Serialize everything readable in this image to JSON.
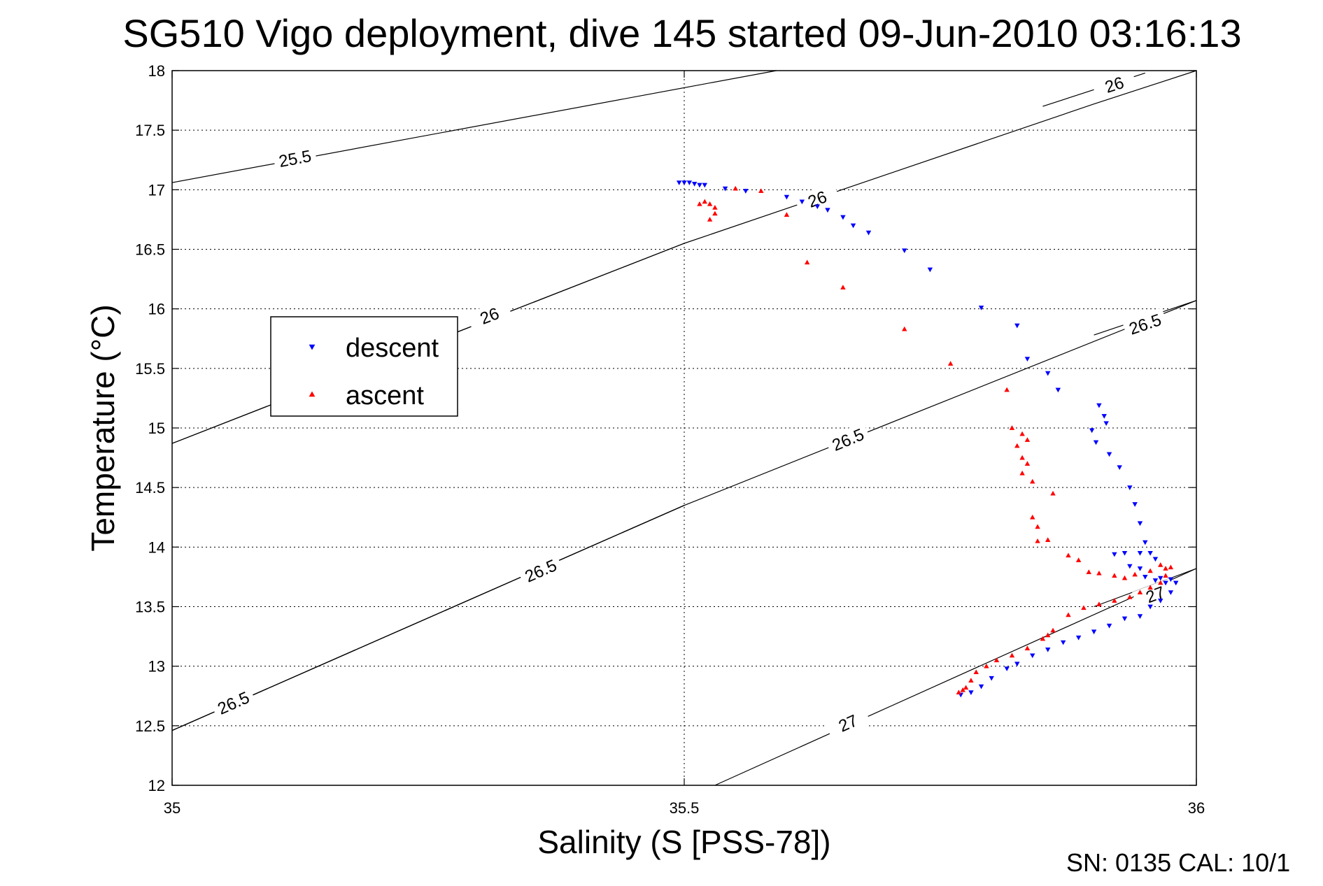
{
  "chart_data": {
    "type": "scatter",
    "title": "SG510 Vigo deployment, dive 145 started 09-Jun-2010 03:16:13",
    "xlabel": "Salinity (S [PSS-78])",
    "ylabel": "Temperature (°C)",
    "xlim": [
      35,
      36
    ],
    "ylim": [
      12,
      18
    ],
    "xticks": [
      "35",
      "35.5",
      "36"
    ],
    "yticks": [
      "12",
      "12.5",
      "13",
      "13.5",
      "14",
      "14.5",
      "15",
      "15.5",
      "16",
      "16.5",
      "17",
      "17.5",
      "18"
    ],
    "grid": true,
    "legend_position": "middle-left",
    "footer": "SN: 0135  CAL: 10/1",
    "colors": {
      "descent": "#0000ff",
      "ascent": "#ff0000",
      "contour": "#000000"
    },
    "contours": [
      {
        "label": "25.5",
        "points": [
          [
            35.0,
            17.06
          ],
          [
            35.59,
            18.0
          ]
        ],
        "label_at": [
          35.12,
          17.26
        ]
      },
      {
        "label": "26",
        "points": [
          [
            35.0,
            14.87
          ],
          [
            35.5,
            16.55
          ],
          [
            35.9,
            17.72
          ],
          [
            36.0,
            18.0
          ]
        ],
        "label_at": [
          35.63,
          16.92
        ]
      },
      {
        "label": "26",
        "points": [
          [
            35.0,
            14.87
          ],
          [
            35.5,
            16.55
          ]
        ],
        "label_at": [
          35.31,
          15.94
        ]
      },
      {
        "label": "26",
        "points": [
          [
            35.85,
            17.7
          ],
          [
            35.95,
            17.98
          ]
        ],
        "label_at": [
          35.92,
          17.88
        ]
      },
      {
        "label": "26.5",
        "points": [
          [
            35.0,
            12.46
          ],
          [
            35.5,
            14.35
          ],
          [
            36.0,
            16.07
          ]
        ],
        "label_at": [
          35.66,
          14.9
        ]
      },
      {
        "label": "26.5",
        "points": [
          [
            35.0,
            12.46
          ],
          [
            35.5,
            14.35
          ]
        ],
        "label_at": [
          35.36,
          13.8
        ]
      },
      {
        "label": "26.5",
        "points": [
          [
            35.0,
            12.46
          ],
          [
            35.5,
            14.35
          ]
        ],
        "label_at": [
          35.06,
          12.69
        ]
      },
      {
        "label": "26.5",
        "points": [
          [
            35.9,
            15.78
          ],
          [
            36.0,
            16.07
          ]
        ],
        "label_at": [
          35.95,
          15.87
        ]
      },
      {
        "label": "27",
        "points": [
          [
            35.53,
            12.0
          ],
          [
            36.0,
            13.82
          ]
        ],
        "label_at": [
          35.66,
          12.52
        ]
      },
      {
        "label": "27",
        "points": [
          [
            35.9,
            13.5
          ],
          [
            36.0,
            13.82
          ]
        ],
        "label_at": [
          35.96,
          13.6
        ]
      }
    ],
    "series": [
      {
        "name": "descent",
        "marker": "triangle-down",
        "points": [
          [
            35.495,
            17.06
          ],
          [
            35.5,
            17.06
          ],
          [
            35.505,
            17.06
          ],
          [
            35.51,
            17.05
          ],
          [
            35.515,
            17.04
          ],
          [
            35.52,
            17.04
          ],
          [
            35.54,
            17.01
          ],
          [
            35.56,
            16.99
          ],
          [
            35.6,
            16.94
          ],
          [
            35.615,
            16.9
          ],
          [
            35.63,
            16.86
          ],
          [
            35.64,
            16.83
          ],
          [
            35.655,
            16.77
          ],
          [
            35.665,
            16.7
          ],
          [
            35.68,
            16.64
          ],
          [
            35.715,
            16.49
          ],
          [
            35.74,
            16.33
          ],
          [
            35.79,
            16.01
          ],
          [
            35.825,
            15.86
          ],
          [
            35.835,
            15.58
          ],
          [
            35.855,
            15.46
          ],
          [
            35.865,
            15.32
          ],
          [
            35.905,
            15.19
          ],
          [
            35.91,
            15.1
          ],
          [
            35.912,
            15.04
          ],
          [
            35.898,
            14.98
          ],
          [
            35.902,
            14.88
          ],
          [
            35.915,
            14.78
          ],
          [
            35.925,
            14.67
          ],
          [
            35.935,
            14.5
          ],
          [
            35.94,
            14.36
          ],
          [
            35.945,
            14.2
          ],
          [
            35.95,
            14.04
          ],
          [
            35.92,
            13.94
          ],
          [
            35.93,
            13.95
          ],
          [
            35.945,
            13.95
          ],
          [
            35.955,
            13.95
          ],
          [
            35.96,
            13.9
          ],
          [
            35.935,
            13.84
          ],
          [
            35.945,
            13.82
          ],
          [
            35.95,
            13.75
          ],
          [
            35.96,
            13.72
          ],
          [
            35.965,
            13.74
          ],
          [
            35.975,
            13.73
          ],
          [
            35.97,
            13.7
          ],
          [
            35.98,
            13.7
          ],
          [
            35.975,
            13.62
          ],
          [
            35.965,
            13.55
          ],
          [
            35.955,
            13.5
          ],
          [
            35.945,
            13.42
          ],
          [
            35.93,
            13.4
          ],
          [
            35.915,
            13.34
          ],
          [
            35.9,
            13.29
          ],
          [
            35.885,
            13.24
          ],
          [
            35.87,
            13.2
          ],
          [
            35.855,
            13.14
          ],
          [
            35.84,
            13.09
          ],
          [
            35.825,
            13.02
          ],
          [
            35.815,
            12.98
          ],
          [
            35.8,
            12.9
          ],
          [
            35.79,
            12.83
          ],
          [
            35.78,
            12.78
          ],
          [
            35.77,
            12.76
          ]
        ]
      },
      {
        "name": "ascent",
        "marker": "triangle-up",
        "points": [
          [
            35.515,
            16.88
          ],
          [
            35.52,
            16.9
          ],
          [
            35.525,
            16.88
          ],
          [
            35.53,
            16.85
          ],
          [
            35.53,
            16.8
          ],
          [
            35.525,
            16.75
          ],
          [
            35.55,
            17.01
          ],
          [
            35.575,
            16.99
          ],
          [
            35.6,
            16.79
          ],
          [
            35.62,
            16.39
          ],
          [
            35.655,
            16.18
          ],
          [
            35.715,
            15.83
          ],
          [
            35.76,
            15.54
          ],
          [
            35.815,
            15.32
          ],
          [
            35.82,
            15.0
          ],
          [
            35.83,
            14.95
          ],
          [
            35.835,
            14.9
          ],
          [
            35.825,
            14.85
          ],
          [
            35.83,
            14.75
          ],
          [
            35.835,
            14.7
          ],
          [
            35.83,
            14.62
          ],
          [
            35.84,
            14.55
          ],
          [
            35.86,
            14.45
          ],
          [
            35.84,
            14.25
          ],
          [
            35.845,
            14.17
          ],
          [
            35.845,
            14.05
          ],
          [
            35.855,
            14.06
          ],
          [
            35.875,
            13.93
          ],
          [
            35.885,
            13.89
          ],
          [
            35.895,
            13.79
          ],
          [
            35.905,
            13.78
          ],
          [
            35.92,
            13.76
          ],
          [
            35.93,
            13.74
          ],
          [
            35.94,
            13.77
          ],
          [
            35.955,
            13.8
          ],
          [
            35.965,
            13.85
          ],
          [
            35.97,
            13.82
          ],
          [
            35.975,
            13.83
          ],
          [
            35.97,
            13.76
          ],
          [
            35.965,
            13.7
          ],
          [
            35.955,
            13.66
          ],
          [
            35.945,
            13.62
          ],
          [
            35.935,
            13.58
          ],
          [
            35.92,
            13.55
          ],
          [
            35.905,
            13.52
          ],
          [
            35.89,
            13.49
          ],
          [
            35.875,
            13.43
          ],
          [
            35.86,
            13.3
          ],
          [
            35.855,
            13.26
          ],
          [
            35.85,
            13.23
          ],
          [
            35.835,
            13.15
          ],
          [
            35.82,
            13.09
          ],
          [
            35.805,
            13.05
          ],
          [
            35.795,
            13.0
          ],
          [
            35.785,
            12.95
          ],
          [
            35.78,
            12.88
          ],
          [
            35.775,
            12.82
          ],
          [
            35.768,
            12.78
          ],
          [
            35.772,
            12.8
          ]
        ]
      }
    ]
  }
}
